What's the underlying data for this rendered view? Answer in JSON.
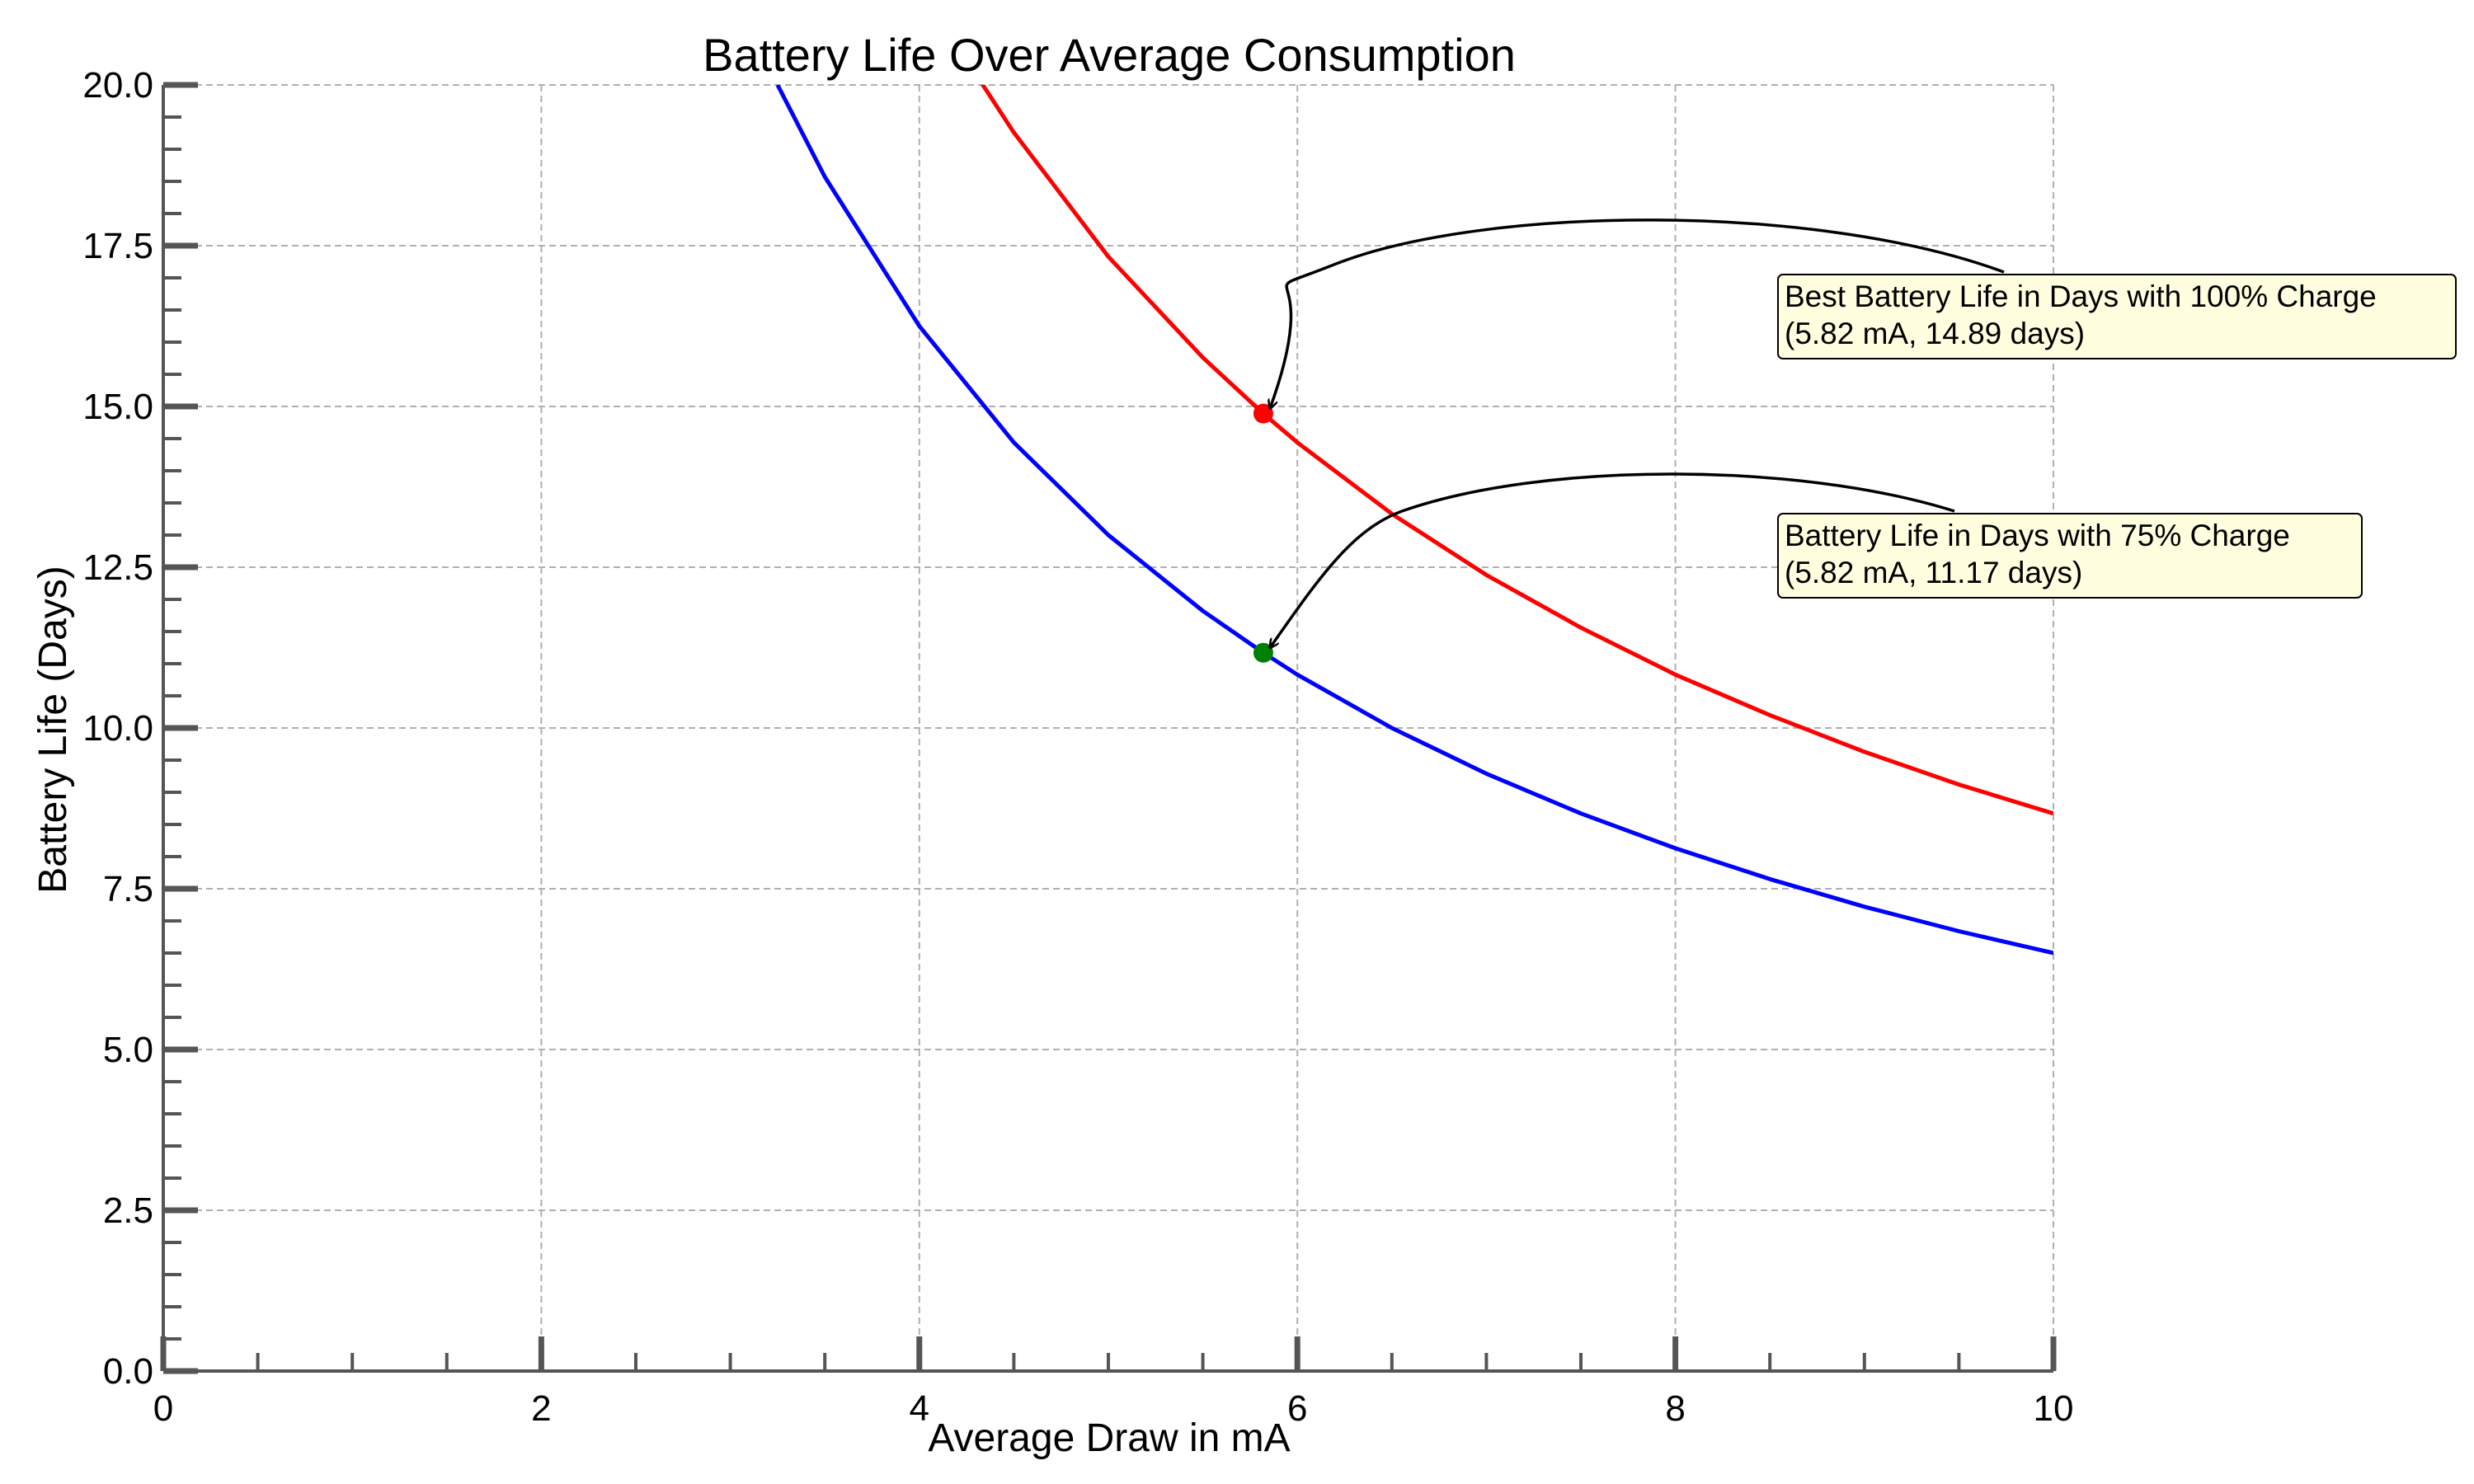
{
  "chart_data": {
    "type": "line",
    "title": "Battery Life Over Average Consumption",
    "xlabel": "Average Draw in mA",
    "ylabel": "Battery Life (Days)",
    "xlim": [
      0,
      10
    ],
    "ylim": [
      0,
      20
    ],
    "x_ticks": [
      "0",
      "2",
      "4",
      "6",
      "8",
      "10"
    ],
    "x_tick_values": [
      0,
      2,
      4,
      6,
      8,
      10
    ],
    "y_ticks": [
      "0.0",
      "2.5",
      "5.0",
      "7.5",
      "10.0",
      "12.5",
      "15.0",
      "17.5",
      "20.0"
    ],
    "y_tick_values": [
      0,
      2.5,
      5,
      7.5,
      10,
      12.5,
      15,
      17.5,
      20
    ],
    "grid": true,
    "series": [
      {
        "color": "#ff0000",
        "x": [
          4.3,
          4.5,
          5.0,
          5.5,
          5.82,
          6.0,
          6.5,
          7.0,
          7.5,
          8.0,
          8.5,
          9.0,
          9.5,
          10.0
        ],
        "y": [
          20.16,
          19.26,
          17.33,
          15.76,
          14.89,
          14.44,
          13.33,
          12.38,
          11.56,
          10.83,
          10.2,
          9.63,
          9.12,
          8.67
        ]
      },
      {
        "color": "#0000ff",
        "x": [
          3.25,
          3.5,
          4.0,
          4.5,
          5.0,
          5.5,
          5.82,
          6.0,
          6.5,
          7.0,
          7.5,
          8.0,
          8.5,
          9.0,
          9.5,
          10.0
        ],
        "y": [
          20.0,
          18.57,
          16.25,
          14.44,
          13.0,
          11.82,
          11.17,
          10.83,
          10.0,
          9.29,
          8.67,
          8.13,
          7.65,
          7.22,
          6.84,
          6.5
        ]
      }
    ],
    "points": [
      {
        "x": 5.82,
        "y": 14.89,
        "color": "#ff0000"
      },
      {
        "x": 5.82,
        "y": 11.17,
        "color": "#008000"
      }
    ],
    "annotations": [
      {
        "line1": "Best Battery Life in Days with 100% Charge",
        "line2": "(5.82 mA, 14.89 days)",
        "target_x": 5.82,
        "target_y": 14.89
      },
      {
        "line1": "Battery Life in Days with 75% Charge",
        "line2": "(5.82 mA, 11.17 days)",
        "target_x": 5.82,
        "target_y": 11.17
      }
    ],
    "colors": {
      "grid": "#b0b0b0",
      "axis": "#555555",
      "annotation_box_fill": "#ffffe0"
    }
  }
}
